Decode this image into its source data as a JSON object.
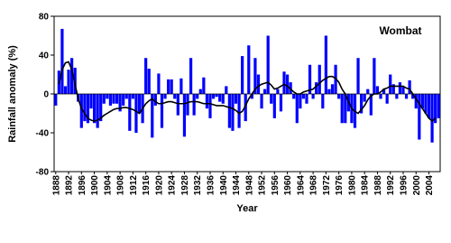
{
  "chart_data": {
    "type": "bar",
    "annotation": "Wombat",
    "x_label": "Year",
    "y_label": "Rainfall anomaly (%)",
    "x": [
      1888,
      1889,
      1890,
      1891,
      1892,
      1893,
      1894,
      1895,
      1896,
      1897,
      1898,
      1899,
      1900,
      1901,
      1902,
      1903,
      1904,
      1905,
      1906,
      1907,
      1908,
      1909,
      1910,
      1911,
      1912,
      1913,
      1914,
      1915,
      1916,
      1917,
      1918,
      1919,
      1920,
      1921,
      1922,
      1923,
      1924,
      1925,
      1926,
      1927,
      1928,
      1929,
      1930,
      1931,
      1932,
      1933,
      1934,
      1935,
      1936,
      1937,
      1938,
      1939,
      1940,
      1941,
      1942,
      1943,
      1944,
      1945,
      1946,
      1947,
      1948,
      1949,
      1950,
      1951,
      1952,
      1953,
      1954,
      1955,
      1956,
      1957,
      1958,
      1959,
      1960,
      1961,
      1962,
      1963,
      1964,
      1965,
      1966,
      1967,
      1968,
      1969,
      1970,
      1971,
      1972,
      1973,
      1974,
      1975,
      1976,
      1977,
      1978,
      1979,
      1980,
      1981,
      1982,
      1983,
      1984,
      1985,
      1986,
      1987,
      1988,
      1989,
      1990,
      1991,
      1992,
      1993,
      1994,
      1995,
      1996,
      1997,
      1998,
      1999,
      2000,
      2001,
      2002,
      2003,
      2004,
      2005,
      2006,
      2007
    ],
    "series": [
      {
        "type": "bar",
        "color": "#0000ff",
        "values": [
          -12,
          24,
          67,
          8,
          25,
          37,
          27,
          -8,
          -35,
          -28,
          -30,
          -15,
          -30,
          -35,
          -28,
          -10,
          -5,
          -12,
          -10,
          -10,
          -18,
          -12,
          -5,
          -38,
          -5,
          -40,
          -20,
          -30,
          37,
          26,
          -45,
          -12,
          21,
          -35,
          -5,
          15,
          15,
          -5,
          -22,
          16,
          -44,
          -22,
          37,
          -22,
          -5,
          5,
          17,
          -15,
          -25,
          -5,
          -3,
          -8,
          -10,
          8,
          -35,
          -38,
          -10,
          -35,
          39,
          -28,
          50,
          -5,
          37,
          20,
          -15,
          5,
          60,
          -10,
          -25,
          5,
          -18,
          23,
          20,
          12,
          -5,
          -30,
          -15,
          -5,
          -10,
          30,
          -5,
          12,
          30,
          -15,
          60,
          5,
          10,
          30,
          -5,
          -30,
          -30,
          -18,
          -30,
          -35,
          37,
          -20,
          -8,
          5,
          -22,
          37,
          8,
          -5,
          5,
          -10,
          20,
          10,
          -5,
          12,
          8,
          -5,
          14,
          -5,
          -15,
          -47,
          -15,
          -20,
          -25,
          -50,
          -30,
          -25
        ]
      },
      {
        "type": "line",
        "color": "#000000",
        "values": [
          null,
          10,
          25,
          32,
          33,
          25,
          10,
          -5,
          -15,
          -20,
          -25,
          -27,
          -28,
          -27,
          -25,
          -22,
          -20,
          -18,
          -16,
          -15,
          -15,
          -14,
          -14,
          -15,
          -16,
          -18,
          -20,
          -15,
          -10,
          -7,
          -5,
          -8,
          -10,
          -10,
          -9,
          -8,
          -8,
          -9,
          -10,
          -10,
          -10,
          -9,
          -8,
          -8,
          -8,
          -9,
          -10,
          -10,
          -10,
          -11,
          -12,
          -12,
          -12,
          -13,
          -14,
          -15,
          -17,
          -20,
          -18,
          -12,
          -5,
          0,
          5,
          8,
          10,
          11,
          12,
          9,
          5,
          6,
          8,
          10,
          8,
          5,
          2,
          0,
          0,
          2,
          3,
          4,
          5,
          8,
          11,
          14,
          16,
          18,
          18,
          16,
          12,
          5,
          0,
          -8,
          -15,
          -18,
          -20,
          -16,
          -12,
          -6,
          -2,
          0,
          0,
          2,
          5,
          6,
          8,
          8,
          8,
          8,
          8,
          6,
          5,
          0,
          -5,
          -10,
          -15,
          -20,
          -25,
          -28,
          -25,
          null
        ]
      }
    ],
    "xlim": [
      1887.5,
      2007.5
    ],
    "xticks": [
      1888,
      1892,
      1896,
      1900,
      1904,
      1908,
      1912,
      1916,
      1920,
      1924,
      1928,
      1932,
      1936,
      1940,
      1944,
      1948,
      1952,
      1956,
      1960,
      1964,
      1968,
      1972,
      1976,
      1980,
      1984,
      1988,
      1992,
      1996,
      2000,
      2004
    ],
    "ylim": [
      -80,
      80
    ],
    "yticks": [
      -80,
      -40,
      0,
      40,
      80
    ],
    "zero_line": true
  }
}
